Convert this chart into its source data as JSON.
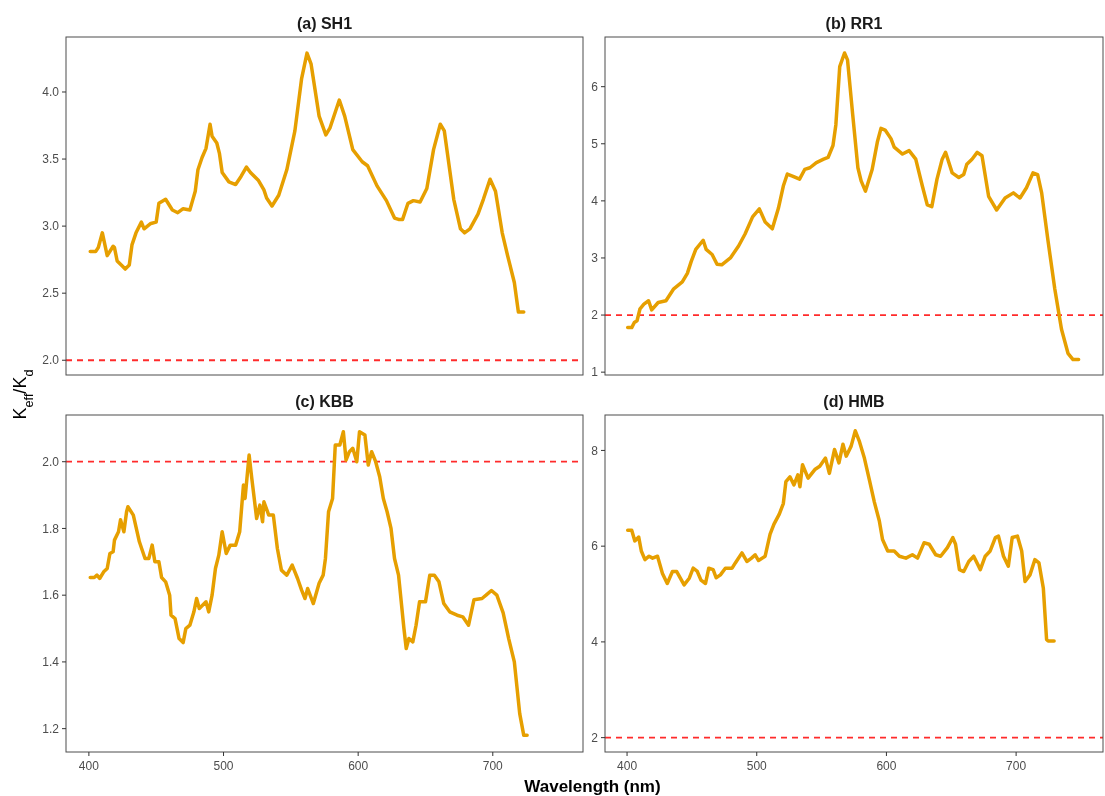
{
  "chart_data": [
    {
      "type": "line",
      "title": "(a) SH1",
      "ylabel": "K$_{eff}$/K$_{d}$",
      "color": "#e69f00",
      "xlim": [
        383,
        767
      ],
      "ylim": [
        1.89,
        4.41
      ],
      "yticks": [
        {
          "value": 2,
          "label": "2.0"
        },
        2.5,
        {
          "value": 3,
          "label": "3.0"
        },
        3.5,
        {
          "value": 4,
          "label": "4.0"
        }
      ],
      "tick_labels": "y",
      "grid": false,
      "line_style": "solid",
      "ref_lines": [
        {
          "axis": "y",
          "value": 2,
          "color": "#ff2b2b",
          "line_style": "dashed"
        }
      ],
      "x": [
        401,
        405,
        407,
        410,
        413.6,
        418,
        419,
        421,
        425,
        427,
        430,
        432,
        435,
        439,
        441,
        446,
        450,
        452,
        457,
        462,
        466,
        470,
        475,
        477,
        479,
        481,
        484,
        487,
        490,
        491.5,
        495,
        497,
        499,
        504,
        509,
        513,
        517,
        520,
        526,
        530,
        532,
        536,
        541,
        547,
        553,
        558,
        562,
        565,
        571,
        576,
        579,
        586,
        590,
        596,
        603,
        607,
        614,
        621,
        627,
        630,
        633,
        637,
        641,
        646,
        651,
        656,
        661,
        664,
        671,
        676,
        679,
        683,
        689,
        693,
        698,
        702,
        707,
        711,
        716,
        719,
        723
      ],
      "values": [
        2.81,
        2.81,
        2.84,
        2.95,
        2.78,
        2.85,
        2.84,
        2.74,
        2.7,
        2.68,
        2.71,
        2.86,
        2.95,
        3.03,
        2.98,
        3.02,
        3.03,
        3.17,
        3.2,
        3.12,
        3.1,
        3.13,
        3.12,
        3.19,
        3.26,
        3.42,
        3.51,
        3.58,
        3.76,
        3.67,
        3.62,
        3.54,
        3.4,
        3.33,
        3.31,
        3.37,
        3.44,
        3.4,
        3.34,
        3.27,
        3.21,
        3.15,
        3.23,
        3.42,
        3.71,
        4.1,
        4.29,
        4.21,
        3.82,
        3.68,
        3.73,
        3.94,
        3.82,
        3.57,
        3.48,
        3.45,
        3.3,
        3.19,
        3.06,
        3.05,
        3.05,
        3.17,
        3.19,
        3.18,
        3.28,
        3.57,
        3.76,
        3.71,
        3.2,
        2.98,
        2.95,
        2.98,
        3.09,
        3.2,
        3.35,
        3.26,
        2.95,
        2.78,
        2.58,
        2.36,
        2.36
      ]
    },
    {
      "type": "line",
      "title": "(b) RR1",
      "color": "#e69f00",
      "xlim": [
        383,
        767
      ],
      "ylim": [
        0.95,
        6.87
      ],
      "yticks": [
        1,
        2,
        3,
        4,
        5,
        6
      ],
      "tick_labels": "y",
      "grid": false,
      "line_style": "solid",
      "ref_lines": [
        {
          "axis": "y",
          "value": 2,
          "color": "#ff2b2b",
          "line_style": "dashed"
        }
      ],
      "x": [
        400.5,
        403.6,
        405.6,
        407.7,
        410,
        413,
        416.6,
        419,
        424,
        430,
        436,
        442.6,
        446.5,
        449.5,
        453,
        458.7,
        461,
        465.6,
        469.4,
        473,
        479.7,
        486,
        491,
        496.8,
        502,
        506.5,
        512,
        516.7,
        520.5,
        523.6,
        528,
        533,
        537,
        541,
        546,
        551.6,
        555,
        558.8,
        561,
        564,
        567.7,
        570,
        574,
        578,
        580.5,
        583.8,
        589,
        593,
        595.8,
        599,
        603.5,
        606,
        612.4,
        617.5,
        622.6,
        627.7,
        631.5,
        635,
        639,
        643,
        645.6,
        650.7,
        655.8,
        659.6,
        662,
        666,
        670,
        673.7,
        678.8,
        685,
        691.5,
        697.9,
        703,
        708,
        713,
        716.6,
        719.7,
        724.6,
        729.8,
        735,
        740,
        743.9,
        748.2
      ],
      "values": [
        1.78,
        1.78,
        1.87,
        1.9,
        2.11,
        2.19,
        2.25,
        2.09,
        2.22,
        2.25,
        2.46,
        2.58,
        2.73,
        2.94,
        3.15,
        3.31,
        3.15,
        3.06,
        2.89,
        2.88,
        3,
        3.21,
        3.42,
        3.72,
        3.86,
        3.63,
        3.51,
        3.87,
        4.26,
        4.47,
        4.43,
        4.38,
        4.55,
        4.58,
        4.67,
        4.73,
        4.76,
        4.97,
        5.33,
        6.35,
        6.59,
        6.47,
        5.51,
        4.58,
        4.35,
        4.17,
        4.55,
        5.03,
        5.27,
        5.24,
        5.09,
        4.94,
        4.82,
        4.88,
        4.73,
        4.26,
        3.93,
        3.9,
        4.38,
        4.73,
        4.85,
        4.49,
        4.41,
        4.46,
        4.64,
        4.73,
        4.85,
        4.79,
        4.08,
        3.84,
        4.05,
        4.14,
        4.05,
        4.23,
        4.49,
        4.46,
        4.14,
        3.3,
        2.46,
        1.75,
        1.33,
        1.22,
        1.22
      ]
    },
    {
      "type": "line",
      "title": "(c) KBB",
      "xlabel": "Wavelength (nm)",
      "color": "#e69f00",
      "xlim": [
        383,
        767
      ],
      "ylim": [
        1.13,
        2.14
      ],
      "xticks": [
        400,
        500,
        600,
        700
      ],
      "yticks": [
        1.2,
        1.4,
        1.6,
        1.8,
        {
          "value": 2,
          "label": "2.0"
        }
      ],
      "grid": false,
      "line_style": "solid",
      "ref_lines": [
        {
          "axis": "y",
          "value": 2,
          "color": "#ff2b2b",
          "line_style": "dashed"
        }
      ],
      "x": [
        401,
        404,
        406,
        408,
        411,
        413.6,
        415.6,
        418,
        419,
        422,
        423.5,
        426,
        428,
        429,
        433,
        437.5,
        441.7,
        444.5,
        447,
        449,
        452,
        454,
        457,
        460,
        461,
        464,
        467,
        470,
        472,
        475,
        478,
        480,
        482,
        487,
        489,
        491.5,
        494,
        496.5,
        499,
        502,
        505,
        509,
        512,
        514.8,
        516,
        519,
        521,
        524.6,
        527,
        529,
        530,
        533.6,
        537,
        540,
        543,
        547,
        551,
        555,
        558,
        560.5,
        562.5,
        566.7,
        571,
        574,
        575.7,
        578,
        581,
        583,
        586.4,
        589,
        591,
        593.5,
        596,
        599,
        601,
        605,
        607.5,
        610,
        613,
        616,
        618.7,
        621.5,
        624.4,
        627,
        630,
        634,
        635.7,
        637.7,
        640.6,
        643,
        645.6,
        650,
        653.2,
        656.6,
        660,
        663.6,
        668,
        673.5,
        677.7,
        682,
        686,
        692,
        695,
        699,
        703,
        707.7,
        711.8,
        716,
        720,
        723,
        725.5
      ],
      "values": [
        1.653,
        1.653,
        1.66,
        1.65,
        1.67,
        1.68,
        1.725,
        1.73,
        1.765,
        1.79,
        1.826,
        1.79,
        1.85,
        1.865,
        1.84,
        1.76,
        1.71,
        1.71,
        1.75,
        1.7,
        1.7,
        1.653,
        1.64,
        1.6,
        1.54,
        1.53,
        1.47,
        1.458,
        1.5,
        1.51,
        1.55,
        1.59,
        1.56,
        1.58,
        1.55,
        1.6,
        1.68,
        1.72,
        1.79,
        1.725,
        1.75,
        1.75,
        1.79,
        1.93,
        1.89,
        2.02,
        1.95,
        1.83,
        1.87,
        1.82,
        1.88,
        1.84,
        1.84,
        1.74,
        1.675,
        1.66,
        1.69,
        1.65,
        1.615,
        1.59,
        1.62,
        1.575,
        1.636,
        1.66,
        1.71,
        1.85,
        1.89,
        2.05,
        2.05,
        2.09,
        2.005,
        2.03,
        2.04,
        2,
        2.09,
        2.08,
        1.99,
        2.03,
        2,
        1.955,
        1.89,
        1.85,
        1.8,
        1.71,
        1.66,
        1.5,
        1.44,
        1.47,
        1.46,
        1.51,
        1.58,
        1.58,
        1.66,
        1.66,
        1.64,
        1.575,
        1.55,
        1.54,
        1.535,
        1.51,
        1.586,
        1.59,
        1.6,
        1.614,
        1.6,
        1.547,
        1.47,
        1.4,
        1.245,
        1.18,
        1.18
      ]
    },
    {
      "type": "line",
      "title": "(d) HMB",
      "color": "#e69f00",
      "xlim": [
        383,
        767
      ],
      "ylim": [
        1.7,
        8.74
      ],
      "xticks": [
        400,
        500,
        600,
        700
      ],
      "yticks": [
        2,
        4,
        6,
        8
      ],
      "grid": false,
      "line_style": "solid",
      "ref_lines": [
        {
          "axis": "y",
          "value": 2,
          "color": "#ff2b2b",
          "line_style": "dashed"
        }
      ],
      "x": [
        400.5,
        403.6,
        406,
        409,
        411,
        413.8,
        417,
        419.7,
        423.5,
        427.3,
        431,
        435,
        438.3,
        444,
        448,
        451,
        454,
        457,
        460.5,
        463,
        466.4,
        468.7,
        472,
        475.8,
        481,
        483.5,
        488.6,
        492.4,
        496,
        498.8,
        501.4,
        506.5,
        510.3,
        513.3,
        517.4,
        520.5,
        522.5,
        525.6,
        528.7,
        531.7,
        533.3,
        535.3,
        539.6,
        544.8,
        548.6,
        553,
        556,
        560,
        563.4,
        566.5,
        569,
        572.8,
        576,
        579,
        583,
        586.9,
        590.7,
        594.5,
        597,
        601,
        606,
        610,
        615,
        620,
        624,
        629,
        633,
        638,
        641.8,
        647,
        651.2,
        653.3,
        656.3,
        659.6,
        663.5,
        667.3,
        672.4,
        676.2,
        680,
        684,
        686.4,
        690.3,
        694,
        697,
        701,
        704.3,
        706.9,
        710.7,
        714.5,
        717.6,
        721,
        723.5,
        724.7,
        729.3
      ],
      "values": [
        6.33,
        6.33,
        6.11,
        6.19,
        5.9,
        5.72,
        5.79,
        5.75,
        5.79,
        5.43,
        5.22,
        5.47,
        5.47,
        5.19,
        5.33,
        5.54,
        5.48,
        5.29,
        5.22,
        5.54,
        5.51,
        5.34,
        5.4,
        5.54,
        5.54,
        5.65,
        5.86,
        5.68,
        5.75,
        5.82,
        5.7,
        5.79,
        6.25,
        6.46,
        6.67,
        6.89,
        7.35,
        7.45,
        7.28,
        7.49,
        7.24,
        7.7,
        7.42,
        7.6,
        7.67,
        7.84,
        7.52,
        8.02,
        7.74,
        8.13,
        7.88,
        8.09,
        8.41,
        8.2,
        7.84,
        7.38,
        6.92,
        6.53,
        6.14,
        5.9,
        5.9,
        5.79,
        5.75,
        5.82,
        5.75,
        6.07,
        6.04,
        5.82,
        5.79,
        5.97,
        6.18,
        6.04,
        5.51,
        5.47,
        5.68,
        5.79,
        5.51,
        5.79,
        5.9,
        6.18,
        6.21,
        5.79,
        5.58,
        6.18,
        6.21,
        5.9,
        5.26,
        5.4,
        5.72,
        5.65,
        5.12,
        4.05,
        4.02,
        4.02
      ]
    }
  ]
}
